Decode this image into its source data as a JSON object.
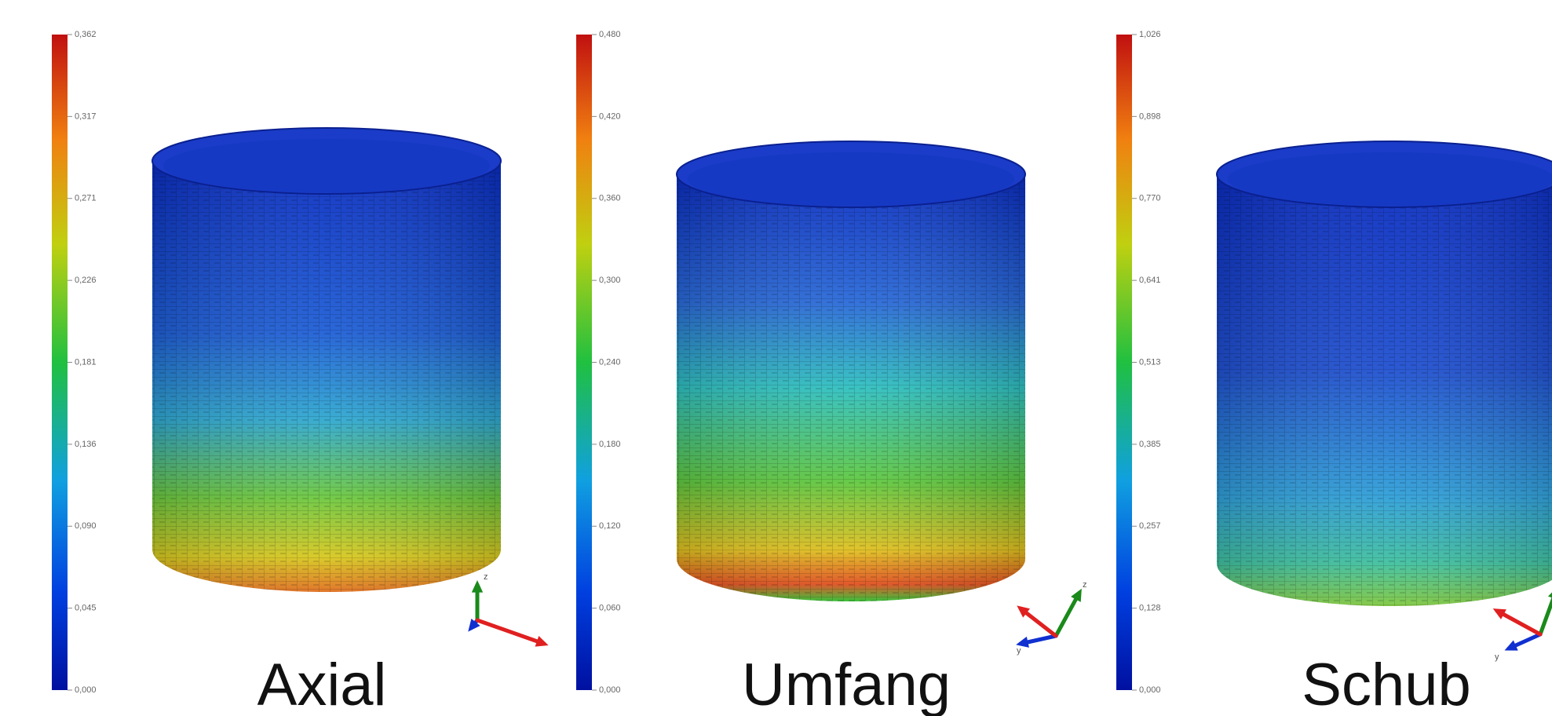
{
  "panels": [
    {
      "label": "Axial",
      "colorbar_ticks": [
        "0,362",
        "0,317",
        "0,271",
        "0,226",
        "0,181",
        "0,136",
        "0,090",
        "0,045",
        "0,000"
      ],
      "axis_labels": [
        "z"
      ]
    },
    {
      "label": "Umfang",
      "colorbar_ticks": [
        "0,480",
        "0,420",
        "0,360",
        "0,300",
        "0,240",
        "0,180",
        "0,120",
        "0,060",
        "0,000"
      ],
      "axis_labels": [
        "z",
        "y"
      ]
    },
    {
      "label": "Schub",
      "colorbar_ticks": [
        "1,026",
        "0,898",
        "0,770",
        "0,641",
        "0,513",
        "0,385",
        "0,257",
        "0,128",
        "0,000"
      ],
      "axis_labels": [
        "y"
      ]
    }
  ]
}
